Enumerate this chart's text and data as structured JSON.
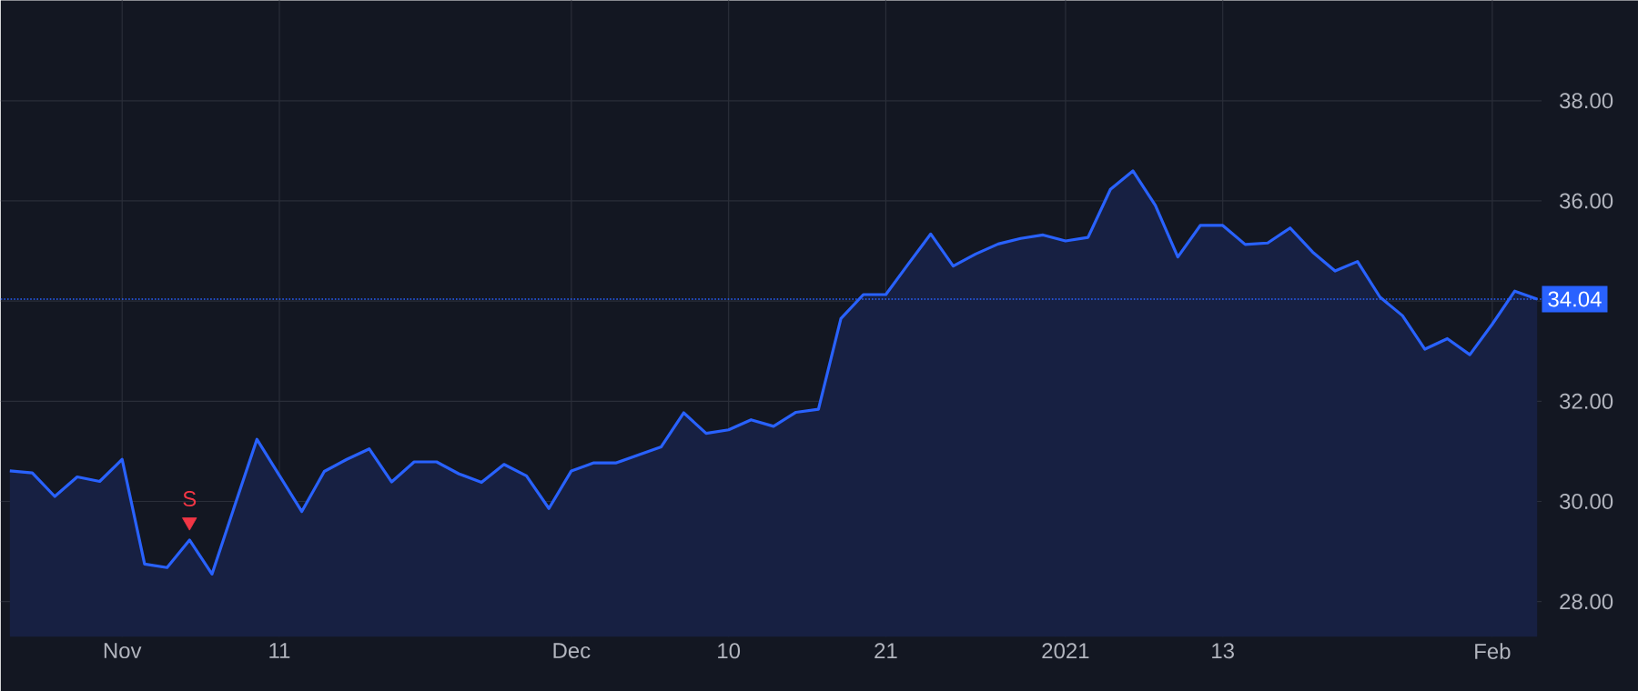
{
  "chart_data": {
    "type": "area",
    "categories": [
      null,
      null,
      null,
      null,
      null,
      "Nov",
      null,
      null,
      null,
      null,
      null,
      null,
      "11",
      null,
      null,
      null,
      null,
      null,
      null,
      null,
      null,
      null,
      null,
      null,
      null,
      "Dec",
      null,
      null,
      null,
      null,
      null,
      null,
      "10",
      null,
      null,
      null,
      null,
      null,
      null,
      "21",
      null,
      null,
      null,
      null,
      null,
      null,
      null,
      "2021",
      null,
      null,
      null,
      null,
      null,
      null,
      "13",
      null,
      null,
      null,
      null,
      null,
      null,
      null,
      null,
      null,
      null,
      null,
      "Feb",
      null,
      null
    ],
    "series": [
      {
        "color": "#2962ff",
        "values": [
          30.61,
          30.57,
          30.1,
          30.49,
          30.4,
          30.84,
          28.75,
          28.68,
          29.23,
          28.55,
          29.9,
          31.24,
          30.52,
          29.8,
          30.6,
          30.84,
          31.05,
          30.39,
          30.79,
          30.79,
          30.55,
          30.38,
          30.74,
          30.51,
          29.86,
          30.61,
          30.77,
          30.77,
          30.93,
          31.09,
          31.77,
          31.36,
          31.43,
          31.63,
          31.5,
          31.78,
          31.84,
          33.65,
          34.13,
          34.13,
          34.74,
          35.34,
          34.7,
          34.94,
          35.14,
          35.25,
          35.32,
          35.2,
          35.27,
          36.23,
          36.6,
          35.91,
          34.88,
          35.51,
          35.51,
          35.13,
          35.16,
          35.46,
          34.98,
          34.6,
          34.79,
          34.08,
          33.71,
          33.04,
          33.25,
          32.93,
          33.54,
          34.2,
          34.04
        ]
      },
      {
        "type": "scatter",
        "color": "#f23645",
        "marker": "triangle",
        "values": [
          null,
          null,
          null,
          null,
          null,
          null,
          null,
          null,
          29.59,
          null,
          null,
          null,
          null,
          null,
          null,
          null,
          null,
          null,
          null,
          null,
          null,
          null,
          null,
          null,
          null,
          null,
          null,
          null,
          null,
          null,
          null,
          null,
          null,
          null,
          null,
          null,
          null,
          null,
          null,
          null,
          null,
          null,
          null,
          null,
          null,
          null,
          null,
          null,
          null,
          null,
          null,
          null,
          null,
          null,
          null,
          null,
          null,
          null,
          null,
          null,
          null,
          null,
          null,
          null,
          null,
          null,
          null,
          null,
          null
        ]
      }
    ],
    "annotations": [
      "S"
    ],
    "ylim": [
      27.3,
      40.0
    ],
    "yticks": [
      {
        "value": 28,
        "label": "28.00"
      },
      {
        "value": 30,
        "label": "30.00"
      },
      {
        "value": 32,
        "label": "32.00"
      },
      {
        "value": 34,
        "label": null
      },
      {
        "value": 36,
        "label": "36.00"
      },
      {
        "value": 38,
        "label": "38.00"
      }
    ],
    "ref_lines": [
      {
        "axis": "y",
        "value": 34.04,
        "label": "34.04",
        "color": "#2962ff",
        "line_style": "dotted"
      }
    ],
    "grid": true
  }
}
